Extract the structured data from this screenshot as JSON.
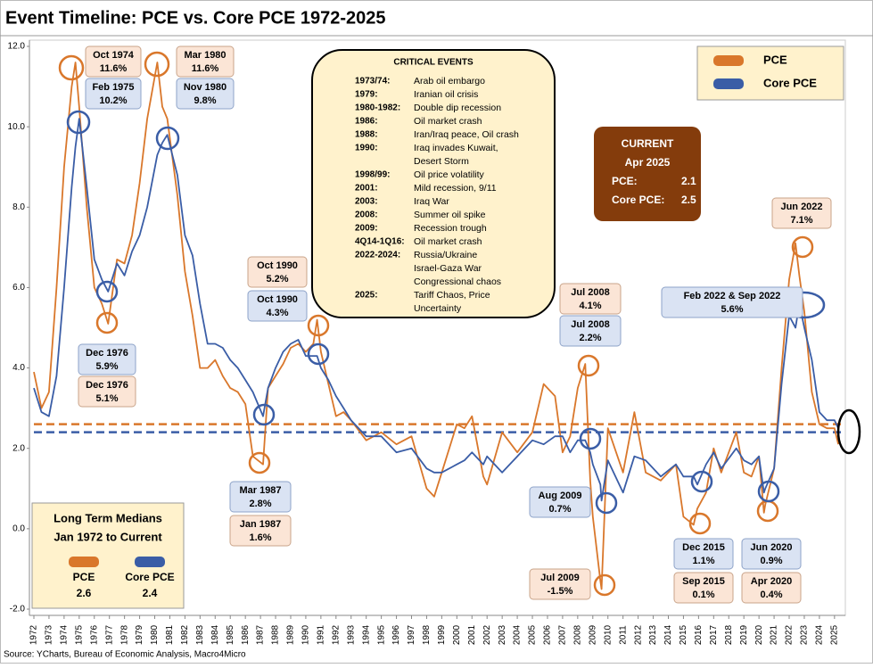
{
  "chart_data": {
    "type": "line",
    "title": "Event Timeline: PCE vs. Core PCE 1972-2025",
    "source": "Source: YCharts, Bureau of Economic Analysis, Macro4Micro",
    "x": [
      1972,
      1972.5,
      1973,
      1973.5,
      1974,
      1974.5,
      1974.75,
      1975,
      1975.5,
      1976,
      1976.5,
      1976.92,
      1977.5,
      1978,
      1978.5,
      1979,
      1979.5,
      1980.17,
      1980.5,
      1980.83,
      1981.5,
      1982,
      1982.5,
      1983,
      1983.5,
      1984,
      1984.5,
      1985,
      1985.5,
      1986,
      1986.5,
      1987.17,
      1987.5,
      1988,
      1988.5,
      1989,
      1989.5,
      1990,
      1990.5,
      1990.75,
      1991,
      1991.5,
      1992,
      1992.5,
      1993,
      1994,
      1995,
      1996,
      1997,
      1998,
      1998.5,
      1999,
      2000,
      2000.5,
      2001,
      2001.75,
      2002,
      2003,
      2004,
      2005,
      2005.75,
      2006.5,
      2007,
      2007.5,
      2008,
      2008.5,
      2008.83,
      2009,
      2009.5,
      2009.58,
      2010,
      2011,
      2011.75,
      2012.5,
      2013.5,
      2014.5,
      2015,
      2015.67,
      2015.92,
      2016.5,
      2017,
      2017.5,
      2018.5,
      2019,
      2019.5,
      2020,
      2020.33,
      2020.42,
      2021,
      2021.5,
      2022,
      2022.42,
      2022.67,
      2023,
      2023.5,
      2024,
      2024.5,
      2025,
      2025.25
    ],
    "series": [
      {
        "name": "PCE",
        "color": "#d9772b",
        "values": [
          3.9,
          3.0,
          3.4,
          6.0,
          9.0,
          11.0,
          11.6,
          10.5,
          8.0,
          6.0,
          5.6,
          5.1,
          6.7,
          6.6,
          7.3,
          8.6,
          10.2,
          11.6,
          10.5,
          10.2,
          8.3,
          6.4,
          5.3,
          4.0,
          4.0,
          4.2,
          3.8,
          3.5,
          3.4,
          3.1,
          1.8,
          1.6,
          3.5,
          3.8,
          4.1,
          4.5,
          4.6,
          4.4,
          4.6,
          5.2,
          4.4,
          3.6,
          2.8,
          2.9,
          2.7,
          2.2,
          2.4,
          2.1,
          2.3,
          1.0,
          0.8,
          1.4,
          2.6,
          2.5,
          2.8,
          1.3,
          1.1,
          2.4,
          1.9,
          2.4,
          3.6,
          3.3,
          1.9,
          2.3,
          3.5,
          4.1,
          1.2,
          0.3,
          -1.3,
          -1.5,
          2.5,
          1.4,
          2.9,
          1.4,
          1.2,
          1.6,
          0.3,
          0.1,
          0.5,
          0.9,
          2.0,
          1.4,
          2.4,
          1.4,
          1.3,
          1.8,
          0.4,
          0.6,
          1.5,
          4.0,
          6.2,
          7.1,
          6.3,
          5.4,
          3.4,
          2.6,
          2.5,
          2.5,
          2.1
        ]
      },
      {
        "name": "Core PCE",
        "color": "#3a5da6",
        "values": [
          3.5,
          2.9,
          2.8,
          3.8,
          6.0,
          8.5,
          9.5,
          10.2,
          8.5,
          6.7,
          6.2,
          5.9,
          6.6,
          6.3,
          6.9,
          7.3,
          8.0,
          9.3,
          9.6,
          9.8,
          8.8,
          7.3,
          6.8,
          5.6,
          4.6,
          4.6,
          4.5,
          4.2,
          4.0,
          3.7,
          3.4,
          2.8,
          3.5,
          4.0,
          4.4,
          4.6,
          4.7,
          4.3,
          4.3,
          4.3,
          4.0,
          3.7,
          3.3,
          3.0,
          2.7,
          2.3,
          2.3,
          1.9,
          2.0,
          1.5,
          1.4,
          1.4,
          1.6,
          1.7,
          1.9,
          1.6,
          1.8,
          1.4,
          1.8,
          2.2,
          2.1,
          2.3,
          2.3,
          1.9,
          2.2,
          2.2,
          1.9,
          1.6,
          1.1,
          0.7,
          1.7,
          0.9,
          1.8,
          1.7,
          1.3,
          1.6,
          1.3,
          1.3,
          1.1,
          1.6,
          1.9,
          1.5,
          2.0,
          1.7,
          1.6,
          1.8,
          0.9,
          1.0,
          1.5,
          3.6,
          5.3,
          5.0,
          5.6,
          5.0,
          4.2,
          2.9,
          2.7,
          2.7,
          2.5
        ]
      }
    ],
    "xlim": [
      1972,
      2025.6
    ],
    "xticks": [
      1972,
      1973,
      1974,
      1975,
      1976,
      1977,
      1978,
      1979,
      1980,
      1981,
      1982,
      1983,
      1984,
      1985,
      1986,
      1987,
      1988,
      1989,
      1990,
      1991,
      1992,
      1993,
      1994,
      1995,
      1996,
      1997,
      1998,
      1999,
      2000,
      2001,
      2002,
      2003,
      2004,
      2005,
      2006,
      2007,
      2008,
      2009,
      2010,
      2011,
      2012,
      2013,
      2014,
      2015,
      2016,
      2017,
      2018,
      2019,
      2020,
      2021,
      2022,
      2023,
      2024,
      2025
    ],
    "ylim": [
      -2,
      12
    ],
    "yticks": [
      {
        "value": -2,
        "label": "-2.0"
      },
      {
        "value": 0,
        "label": "0.0"
      },
      {
        "value": 2,
        "label": "2.0"
      },
      {
        "value": 4,
        "label": "4.0"
      },
      {
        "value": 6,
        "label": "6.0"
      },
      {
        "value": 8,
        "label": "8.0"
      },
      {
        "value": 10,
        "label": "10.0"
      },
      {
        "value": 12,
        "label": "12.0"
      }
    ],
    "grid": false,
    "legend": "upper right",
    "medians": {
      "title": [
        "Long Term Medians",
        "Jan 1972 to Current"
      ],
      "items": [
        {
          "name": "PCE",
          "value": 2.6,
          "color": "#d9772b"
        },
        {
          "name": "Core PCE",
          "value": 2.4,
          "color": "#3a5da6"
        }
      ]
    },
    "current": {
      "title": "CURRENT",
      "date": "Apr 2025",
      "items": [
        {
          "label": "PCE:",
          "value": 2.1
        },
        {
          "label": "Core PCE:",
          "value": 2.5
        }
      ]
    },
    "events": {
      "title": "CRITICAL EVENTS",
      "items": [
        {
          "period": "1973/74:",
          "lines": [
            "Arab oil embargo"
          ]
        },
        {
          "period": "1979:",
          "lines": [
            "Iranian oil crisis"
          ]
        },
        {
          "period": "1980-1982:",
          "lines": [
            "Double dip recession"
          ]
        },
        {
          "period": "1986:",
          "lines": [
            "Oil market crash"
          ]
        },
        {
          "period": "1988:",
          "lines": [
            "Iran/Iraq peace, Oil crash"
          ]
        },
        {
          "period": "1990:",
          "lines": [
            "Iraq invades Kuwait,",
            "Desert Storm"
          ]
        },
        {
          "period": "1998/99:",
          "lines": [
            "Oil price volatility"
          ]
        },
        {
          "period": "2001:",
          "lines": [
            "Mild recession, 9/11"
          ]
        },
        {
          "period": "2003:",
          "lines": [
            "Iraq War"
          ]
        },
        {
          "period": "2008:",
          "lines": [
            "Summer oil spike"
          ]
        },
        {
          "period": "2009:",
          "lines": [
            "Recession trough"
          ]
        },
        {
          "period": "4Q14-1Q16:",
          "lines": [
            "Oil market crash"
          ]
        },
        {
          "period": "2022-2024:",
          "lines": [
            "Russia/Ukraine",
            "Israel-Gaza War",
            "Congressional chaos"
          ]
        },
        {
          "period": "2025:",
          "lines": [
            "Tariff Chaos, Price",
            "Uncertainty"
          ]
        }
      ]
    },
    "annotations": [
      {
        "date": "Oct 1974",
        "text": "11.6%",
        "color": "#d9772b"
      },
      {
        "date": "Feb 1975",
        "text": "10.2%",
        "color": "#3a5da6"
      },
      {
        "date": "Mar 1980",
        "text": "11.6%",
        "color": "#d9772b"
      },
      {
        "date": "Nov 1980",
        "text": "9.8%",
        "color": "#3a5da6"
      },
      {
        "date": "Oct 1990",
        "text": "5.2%",
        "color": "#d9772b"
      },
      {
        "date": "Oct 1990",
        "text": "4.3%",
        "color": "#3a5da6"
      },
      {
        "date": "Dec 1976",
        "text": "5.9%",
        "color": "#3a5da6"
      },
      {
        "date": "Dec 1976",
        "text": "5.1%",
        "color": "#d9772b"
      },
      {
        "date": "Mar 1987",
        "text": "2.8%",
        "color": "#3a5da6"
      },
      {
        "date": "Jan 1987",
        "text": "1.6%",
        "color": "#d9772b"
      },
      {
        "date": "Jul 2008",
        "text": "4.1%",
        "color": "#d9772b"
      },
      {
        "date": "Jul 2008",
        "text": "2.2%",
        "color": "#3a5da6"
      },
      {
        "date": "Aug 2009",
        "text": "0.7%",
        "color": "#3a5da6"
      },
      {
        "date": "Jul 2009",
        "text": "-1.5%",
        "color": "#d9772b"
      },
      {
        "date": "Feb 2022 & Sep 2022",
        "text": "5.6%",
        "color": "#3a5da6"
      },
      {
        "date": "Jun 2022",
        "text": "7.1%",
        "color": "#d9772b"
      },
      {
        "date": "Dec 2015",
        "text": "1.1%",
        "color": "#3a5da6"
      },
      {
        "date": "Sep 2015",
        "text": "0.1%",
        "color": "#d9772b"
      },
      {
        "date": "Jun 2020",
        "text": "0.9%",
        "color": "#3a5da6"
      },
      {
        "date": "Apr 2020",
        "text": "0.4%",
        "color": "#d9772b"
      }
    ]
  }
}
